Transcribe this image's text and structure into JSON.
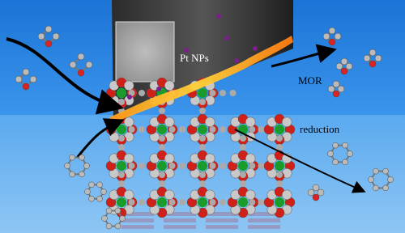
{
  "labels": {
    "pt": "Pt NPs",
    "mor": "MOR",
    "reduction": "reduction"
  }
}
